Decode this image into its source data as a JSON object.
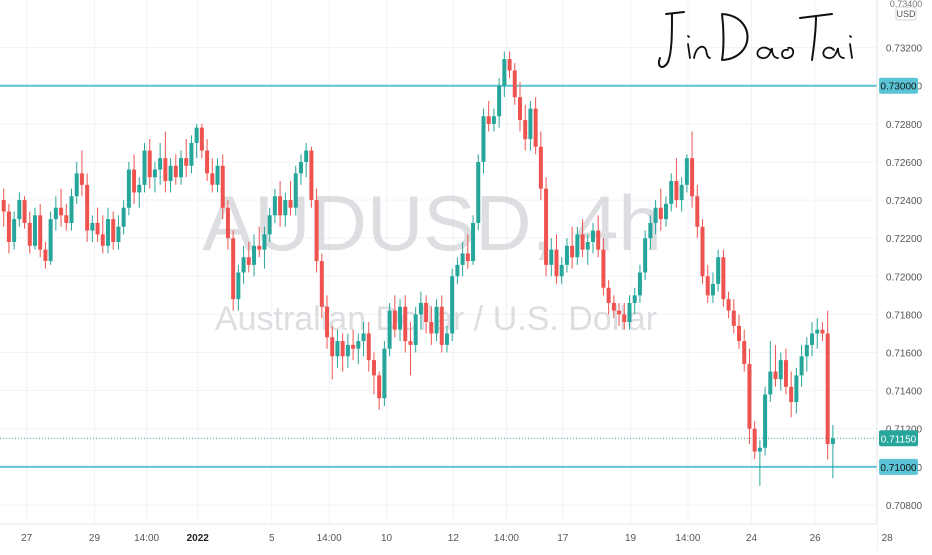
{
  "watermark": {
    "symbol": "AUDUSD, 4h",
    "description": "Australian Dollar / U.S. Dollar"
  },
  "signature": "JinDaoTai",
  "price_axis": {
    "currency": "USD",
    "top_label": "0.73400"
  },
  "chart_data": {
    "type": "candlestick",
    "symbol": "AUDUSD",
    "interval": "4h",
    "ylim": [
      0.707,
      0.7345
    ],
    "y_ticks": [
      0.708,
      0.71,
      0.712,
      0.714,
      0.716,
      0.718,
      0.72,
      0.722,
      0.724,
      0.726,
      0.728,
      0.73,
      0.732
    ],
    "y_tick_labels": [
      "0.70800",
      "0.71000",
      "0.71200",
      "0.71400",
      "0.71600",
      "0.71800",
      "0.72000",
      "0.72200",
      "0.72400",
      "0.72600",
      "0.72800",
      "0.73000",
      "0.73200"
    ],
    "x_ticks": [
      {
        "label": "27",
        "bar": 4.5
      },
      {
        "label": "29",
        "bar": 17.5
      },
      {
        "label": "14:00",
        "bar": 27.5
      },
      {
        "label": "2022",
        "bar": 37.3,
        "bold": true
      },
      {
        "label": "5",
        "bar": 51.5
      },
      {
        "label": "14:00",
        "bar": 62.5
      },
      {
        "label": "10",
        "bar": 73.5
      },
      {
        "label": "12",
        "bar": 86.3
      },
      {
        "label": "14:00",
        "bar": 96.5
      },
      {
        "label": "17",
        "bar": 107.3
      },
      {
        "label": "19",
        "bar": 120.3
      },
      {
        "label": "14:00",
        "bar": 131.3
      },
      {
        "label": "24",
        "bar": 143.5
      },
      {
        "label": "26",
        "bar": 155.7
      },
      {
        "label": "28",
        "bar": 169.5
      }
    ],
    "horizontal_lines": [
      0.73,
      0.71
    ],
    "current_price": 0.7115,
    "current_price_label": "0.71150",
    "level_labels": [
      "0.73000",
      "0.71000"
    ],
    "up_color": "#26a69a",
    "down_color": "#ef5350",
    "level_color": "#5bc4d6",
    "candles": [
      [
        0.724,
        0.7246,
        0.7226,
        0.7234
      ],
      [
        0.7234,
        0.7238,
        0.7212,
        0.7218
      ],
      [
        0.7218,
        0.7234,
        0.7214,
        0.723
      ],
      [
        0.723,
        0.7244,
        0.7226,
        0.724
      ],
      [
        0.724,
        0.7242,
        0.7225,
        0.7228
      ],
      [
        0.7228,
        0.7234,
        0.7212,
        0.7216
      ],
      [
        0.7216,
        0.7236,
        0.7214,
        0.7232
      ],
      [
        0.7232,
        0.7238,
        0.721,
        0.7214
      ],
      [
        0.7214,
        0.7218,
        0.7204,
        0.7208
      ],
      [
        0.7208,
        0.7234,
        0.7206,
        0.723
      ],
      [
        0.723,
        0.7242,
        0.7224,
        0.7236
      ],
      [
        0.7236,
        0.7246,
        0.7226,
        0.7232
      ],
      [
        0.7232,
        0.7238,
        0.7224,
        0.7228
      ],
      [
        0.7228,
        0.7246,
        0.7224,
        0.7242
      ],
      [
        0.7242,
        0.726,
        0.7238,
        0.7254
      ],
      [
        0.7254,
        0.7266,
        0.7242,
        0.7248
      ],
      [
        0.7248,
        0.7254,
        0.7218,
        0.7224
      ],
      [
        0.7224,
        0.7232,
        0.7218,
        0.7228
      ],
      [
        0.7228,
        0.7236,
        0.7218,
        0.7222
      ],
      [
        0.7222,
        0.7232,
        0.7212,
        0.7216
      ],
      [
        0.7216,
        0.7236,
        0.7212,
        0.723
      ],
      [
        0.723,
        0.7234,
        0.7214,
        0.7218
      ],
      [
        0.7218,
        0.7232,
        0.7214,
        0.7226
      ],
      [
        0.7226,
        0.724,
        0.7222,
        0.7236
      ],
      [
        0.7236,
        0.726,
        0.7232,
        0.7256
      ],
      [
        0.7256,
        0.7264,
        0.7238,
        0.7244
      ],
      [
        0.7244,
        0.7252,
        0.7236,
        0.7248
      ],
      [
        0.7248,
        0.727,
        0.7244,
        0.7266
      ],
      [
        0.7266,
        0.7272,
        0.7246,
        0.7252
      ],
      [
        0.7252,
        0.726,
        0.7244,
        0.7256
      ],
      [
        0.7256,
        0.727,
        0.7248,
        0.7262
      ],
      [
        0.7262,
        0.7276,
        0.7244,
        0.725
      ],
      [
        0.725,
        0.7262,
        0.7244,
        0.7258
      ],
      [
        0.7258,
        0.7264,
        0.7248,
        0.7252
      ],
      [
        0.7252,
        0.7266,
        0.7248,
        0.7262
      ],
      [
        0.7262,
        0.7272,
        0.7252,
        0.7258
      ],
      [
        0.7258,
        0.7274,
        0.7254,
        0.727
      ],
      [
        0.727,
        0.728,
        0.7262,
        0.7278
      ],
      [
        0.7278,
        0.728,
        0.7262,
        0.7266
      ],
      [
        0.7266,
        0.7272,
        0.725,
        0.7254
      ],
      [
        0.7254,
        0.7262,
        0.7244,
        0.7248
      ],
      [
        0.7248,
        0.7262,
        0.7244,
        0.7258
      ],
      [
        0.7258,
        0.7264,
        0.723,
        0.7236
      ],
      [
        0.7236,
        0.724,
        0.7214,
        0.722
      ],
      [
        0.722,
        0.7224,
        0.7182,
        0.7188
      ],
      [
        0.7188,
        0.7206,
        0.7182,
        0.7202
      ],
      [
        0.7202,
        0.7216,
        0.7196,
        0.721
      ],
      [
        0.721,
        0.7218,
        0.7202,
        0.7206
      ],
      [
        0.7206,
        0.7222,
        0.72,
        0.7216
      ],
      [
        0.7216,
        0.7226,
        0.721,
        0.7214
      ],
      [
        0.7214,
        0.7226,
        0.7204,
        0.7222
      ],
      [
        0.7222,
        0.7236,
        0.7218,
        0.7232
      ],
      [
        0.7232,
        0.7246,
        0.7228,
        0.7242
      ],
      [
        0.7242,
        0.725,
        0.7226,
        0.7232
      ],
      [
        0.7232,
        0.7244,
        0.7226,
        0.724
      ],
      [
        0.724,
        0.725,
        0.7232,
        0.7236
      ],
      [
        0.7236,
        0.7258,
        0.7232,
        0.7254
      ],
      [
        0.7254,
        0.7264,
        0.7248,
        0.726
      ],
      [
        0.726,
        0.727,
        0.7252,
        0.7266
      ],
      [
        0.7266,
        0.7268,
        0.7236,
        0.724
      ],
      [
        0.724,
        0.7246,
        0.7202,
        0.7208
      ],
      [
        0.7208,
        0.7212,
        0.7178,
        0.7184
      ],
      [
        0.7184,
        0.719,
        0.7162,
        0.7168
      ],
      [
        0.7168,
        0.7174,
        0.7146,
        0.7158
      ],
      [
        0.7158,
        0.7172,
        0.7152,
        0.7166
      ],
      [
        0.7166,
        0.717,
        0.715,
        0.7158
      ],
      [
        0.7158,
        0.717,
        0.7152,
        0.7164
      ],
      [
        0.7164,
        0.7172,
        0.7156,
        0.7162
      ],
      [
        0.7162,
        0.717,
        0.7154,
        0.7166
      ],
      [
        0.7166,
        0.7176,
        0.7158,
        0.717
      ],
      [
        0.717,
        0.7176,
        0.715,
        0.7156
      ],
      [
        0.7156,
        0.716,
        0.7138,
        0.7148
      ],
      [
        0.7148,
        0.715,
        0.713,
        0.7136
      ],
      [
        0.7136,
        0.7166,
        0.7132,
        0.7162
      ],
      [
        0.7162,
        0.7186,
        0.7158,
        0.7182
      ],
      [
        0.7182,
        0.719,
        0.7168,
        0.7172
      ],
      [
        0.7172,
        0.7188,
        0.7166,
        0.7184
      ],
      [
        0.7184,
        0.719,
        0.716,
        0.7166
      ],
      [
        0.7166,
        0.7176,
        0.7148,
        0.7164
      ],
      [
        0.7164,
        0.7184,
        0.716,
        0.718
      ],
      [
        0.718,
        0.7192,
        0.7172,
        0.7186
      ],
      [
        0.7186,
        0.719,
        0.717,
        0.7176
      ],
      [
        0.7176,
        0.7184,
        0.7164,
        0.717
      ],
      [
        0.717,
        0.7188,
        0.7166,
        0.7184
      ],
      [
        0.7184,
        0.719,
        0.716,
        0.7164
      ],
      [
        0.7164,
        0.7174,
        0.716,
        0.717
      ],
      [
        0.717,
        0.7204,
        0.7166,
        0.72
      ],
      [
        0.72,
        0.721,
        0.7196,
        0.7206
      ],
      [
        0.7206,
        0.7218,
        0.72,
        0.7212
      ],
      [
        0.7212,
        0.7222,
        0.7204,
        0.7208
      ],
      [
        0.7208,
        0.7232,
        0.7206,
        0.7228
      ],
      [
        0.7228,
        0.7264,
        0.7224,
        0.726
      ],
      [
        0.726,
        0.7288,
        0.7254,
        0.7284
      ],
      [
        0.7284,
        0.7292,
        0.7276,
        0.728
      ],
      [
        0.728,
        0.7288,
        0.7276,
        0.7284
      ],
      [
        0.7284,
        0.7304,
        0.7278,
        0.73
      ],
      [
        0.73,
        0.7318,
        0.7294,
        0.7314
      ],
      [
        0.7314,
        0.7318,
        0.7304,
        0.7308
      ],
      [
        0.7308,
        0.7312,
        0.729,
        0.7294
      ],
      [
        0.7294,
        0.7302,
        0.7276,
        0.7282
      ],
      [
        0.7282,
        0.729,
        0.7266,
        0.7272
      ],
      [
        0.7272,
        0.7292,
        0.7266,
        0.7288
      ],
      [
        0.7288,
        0.7294,
        0.7264,
        0.7268
      ],
      [
        0.7268,
        0.7276,
        0.724,
        0.7246
      ],
      [
        0.7246,
        0.7252,
        0.72,
        0.7206
      ],
      [
        0.7206,
        0.722,
        0.72,
        0.7214
      ],
      [
        0.7214,
        0.7222,
        0.7196,
        0.72
      ],
      [
        0.72,
        0.721,
        0.7196,
        0.7206
      ],
      [
        0.7206,
        0.722,
        0.7202,
        0.7216
      ],
      [
        0.7216,
        0.7226,
        0.7204,
        0.721
      ],
      [
        0.721,
        0.7226,
        0.7206,
        0.7222
      ],
      [
        0.7222,
        0.723,
        0.721,
        0.7214
      ],
      [
        0.7214,
        0.7222,
        0.7206,
        0.7218
      ],
      [
        0.7218,
        0.7228,
        0.7212,
        0.7224
      ],
      [
        0.7224,
        0.7232,
        0.721,
        0.7214
      ],
      [
        0.7214,
        0.722,
        0.719,
        0.7194
      ],
      [
        0.7194,
        0.7198,
        0.718,
        0.7186
      ],
      [
        0.7186,
        0.719,
        0.7178,
        0.7182
      ],
      [
        0.7182,
        0.7186,
        0.7174,
        0.718
      ],
      [
        0.718,
        0.7186,
        0.7172,
        0.7176
      ],
      [
        0.7176,
        0.719,
        0.7172,
        0.7186
      ],
      [
        0.7186,
        0.7194,
        0.718,
        0.719
      ],
      [
        0.719,
        0.7206,
        0.7186,
        0.7202
      ],
      [
        0.7202,
        0.7224,
        0.7198,
        0.722
      ],
      [
        0.722,
        0.7232,
        0.7214,
        0.7228
      ],
      [
        0.7228,
        0.724,
        0.7222,
        0.7236
      ],
      [
        0.7236,
        0.7246,
        0.7224,
        0.723
      ],
      [
        0.723,
        0.7242,
        0.7226,
        0.7238
      ],
      [
        0.7238,
        0.7254,
        0.7234,
        0.725
      ],
      [
        0.725,
        0.7262,
        0.7236,
        0.724
      ],
      [
        0.724,
        0.7252,
        0.7234,
        0.7248
      ],
      [
        0.7248,
        0.7264,
        0.7244,
        0.7262
      ],
      [
        0.7262,
        0.7276,
        0.7236,
        0.7242
      ],
      [
        0.7242,
        0.7248,
        0.722,
        0.7226
      ],
      [
        0.7226,
        0.723,
        0.7196,
        0.72
      ],
      [
        0.72,
        0.7206,
        0.7186,
        0.719
      ],
      [
        0.719,
        0.7202,
        0.7186,
        0.7196
      ],
      [
        0.7196,
        0.7214,
        0.7192,
        0.721
      ],
      [
        0.721,
        0.7214,
        0.7184,
        0.7188
      ],
      [
        0.7188,
        0.7192,
        0.7178,
        0.7182
      ],
      [
        0.7182,
        0.7188,
        0.717,
        0.7174
      ],
      [
        0.7174,
        0.718,
        0.7162,
        0.7166
      ],
      [
        0.7166,
        0.7172,
        0.715,
        0.7154
      ],
      [
        0.7154,
        0.7162,
        0.7112,
        0.712
      ],
      [
        0.712,
        0.7124,
        0.7104,
        0.7108
      ],
      [
        0.7108,
        0.7114,
        0.709,
        0.711
      ],
      [
        0.711,
        0.7142,
        0.7106,
        0.7138
      ],
      [
        0.7138,
        0.7166,
        0.7134,
        0.715
      ],
      [
        0.715,
        0.7164,
        0.7142,
        0.7146
      ],
      [
        0.7146,
        0.716,
        0.714,
        0.7156
      ],
      [
        0.7156,
        0.7162,
        0.7138,
        0.7142
      ],
      [
        0.7142,
        0.715,
        0.7126,
        0.7134
      ],
      [
        0.7134,
        0.7152,
        0.7128,
        0.7148
      ],
      [
        0.7148,
        0.7164,
        0.7142,
        0.7158
      ],
      [
        0.7158,
        0.7168,
        0.715,
        0.7164
      ],
      [
        0.7164,
        0.7176,
        0.7158,
        0.717
      ],
      [
        0.717,
        0.7178,
        0.7162,
        0.7172
      ],
      [
        0.7172,
        0.7176,
        0.7166,
        0.717
      ],
      [
        0.717,
        0.7182,
        0.7104,
        0.7112
      ],
      [
        0.7112,
        0.7122,
        0.7094,
        0.7115
      ]
    ]
  }
}
